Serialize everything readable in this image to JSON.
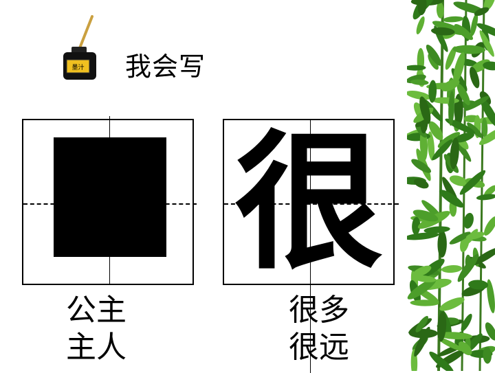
{
  "title": "我会写",
  "ink_label": "墨汁",
  "left_box": {
    "character_hidden": true
  },
  "right_box": {
    "character": "很"
  },
  "left_words": [
    "公主",
    "主人"
  ],
  "right_words": [
    "很多",
    "很远"
  ],
  "colors": {
    "bamboo_green": "#3d8a22",
    "ink_label_bg": "#f0c020"
  }
}
